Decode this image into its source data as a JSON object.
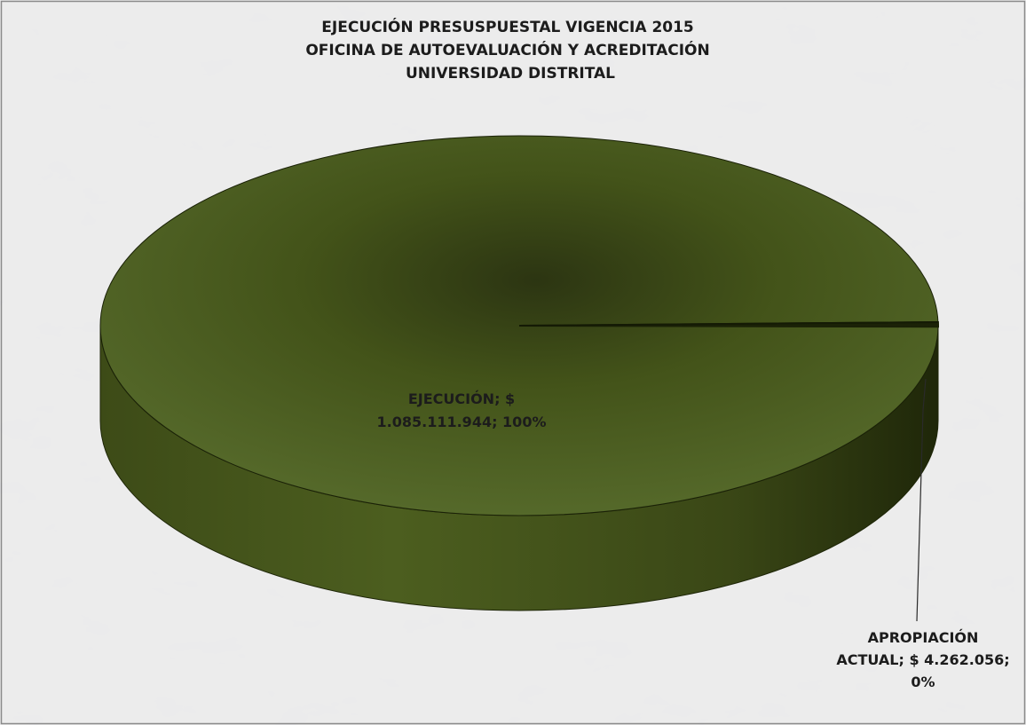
{
  "chart_data": {
    "type": "pie",
    "title": [
      "EJECUCIÓN PRESUSPUESTAL VIGENCIA 2015",
      "OFICINA DE AUTOEVALUACIÓN Y ACREDITACIÓN",
      "UNIVERSIDAD DISTRITAL"
    ],
    "three_d": true,
    "slices": [
      {
        "name": "EJECUCIÓN",
        "value": 1085111944,
        "percent": 100,
        "color": "#4a5b1e",
        "label_lines": [
          "EJECUCIÓN; $",
          "1.085.111.944; 100%"
        ]
      },
      {
        "name": "APROPIACIÓN ACTUAL",
        "value": 4262056,
        "percent": 0,
        "color": "#1b2207",
        "label_lines": [
          "APROPIACIÓN",
          "ACTUAL; $ 4.262.056;",
          "0%"
        ]
      }
    ],
    "colors": {
      "label_text": "#1c1c1c",
      "background": "#e2e2e2",
      "border": "#8a8a8a"
    }
  }
}
